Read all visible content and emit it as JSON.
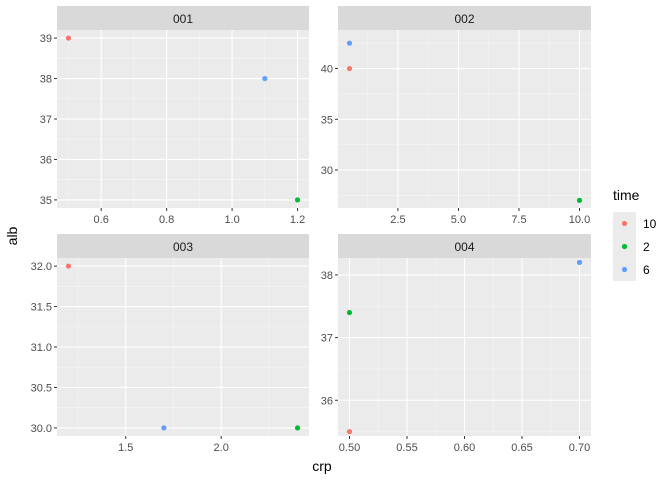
{
  "chart_data": {
    "type": "scatter",
    "xlabel": "crp",
    "ylabel": "alb",
    "legend": {
      "title": "time",
      "placement": "right",
      "entries": [
        {
          "label": "10",
          "color": "#F8766D"
        },
        {
          "label": "2",
          "color": "#00BA38"
        },
        {
          "label": "6",
          "color": "#619CFF"
        }
      ]
    },
    "grid": true,
    "panels": [
      {
        "strip": "001",
        "xlim": [
          0.465,
          1.235
        ],
        "ylim": [
          34.8,
          39.2
        ],
        "x_ticks": [
          0.6,
          0.8,
          1.0,
          1.2
        ],
        "x_tick_labels": [
          "0.6",
          "0.8",
          "1.0",
          "1.2"
        ],
        "y_ticks": [
          35,
          36,
          37,
          38,
          39
        ],
        "y_tick_labels": [
          "35",
          "36",
          "37",
          "38",
          "39"
        ],
        "points": [
          {
            "x": 0.5,
            "y": 39,
            "time": "10"
          },
          {
            "x": 1.1,
            "y": 38,
            "time": "6"
          },
          {
            "x": 1.2,
            "y": 35,
            "time": "2"
          }
        ]
      },
      {
        "strip": "002",
        "xlim": [
          0.025,
          10.475
        ],
        "ylim": [
          26.25,
          43.8
        ],
        "x_ticks": [
          2.5,
          5.0,
          7.5,
          10.0
        ],
        "x_tick_labels": [
          "2.5",
          "5.0",
          "7.5",
          "10.0"
        ],
        "y_ticks": [
          30,
          35,
          40
        ],
        "y_tick_labels": [
          "30",
          "35",
          "40"
        ],
        "points": [
          {
            "x": 0.5,
            "y": 40,
            "time": "10"
          },
          {
            "x": 0.5,
            "y": 42.5,
            "time": "6"
          },
          {
            "x": 10.0,
            "y": 27,
            "time": "2"
          }
        ]
      },
      {
        "strip": "003",
        "xlim": [
          1.14,
          2.46
        ],
        "ylim": [
          29.9,
          32.1
        ],
        "x_ticks": [
          1.5,
          2.0
        ],
        "x_tick_labels": [
          "1.5",
          "2.0"
        ],
        "y_ticks": [
          30.0,
          30.5,
          31.0,
          31.5,
          32.0
        ],
        "y_tick_labels": [
          "30.0",
          "30.5",
          "31.0",
          "31.5",
          "32.0"
        ],
        "points": [
          {
            "x": 1.2,
            "y": 32,
            "time": "10"
          },
          {
            "x": 1.7,
            "y": 30,
            "time": "6"
          },
          {
            "x": 2.4,
            "y": 30,
            "time": "2"
          }
        ]
      },
      {
        "strip": "004",
        "xlim": [
          0.49,
          0.71
        ],
        "ylim": [
          35.43,
          38.27
        ],
        "x_ticks": [
          0.5,
          0.55,
          0.6,
          0.65,
          0.7
        ],
        "x_tick_labels": [
          "0.50",
          "0.55",
          "0.60",
          "0.65",
          "0.70"
        ],
        "y_ticks": [
          36,
          37,
          38
        ],
        "y_tick_labels": [
          "36",
          "37",
          "38"
        ],
        "points": [
          {
            "x": 0.5,
            "y": 35.5,
            "time": "10"
          },
          {
            "x": 0.5,
            "y": 37.4,
            "time": "2"
          },
          {
            "x": 0.7,
            "y": 38.2,
            "time": "6"
          }
        ]
      }
    ]
  }
}
